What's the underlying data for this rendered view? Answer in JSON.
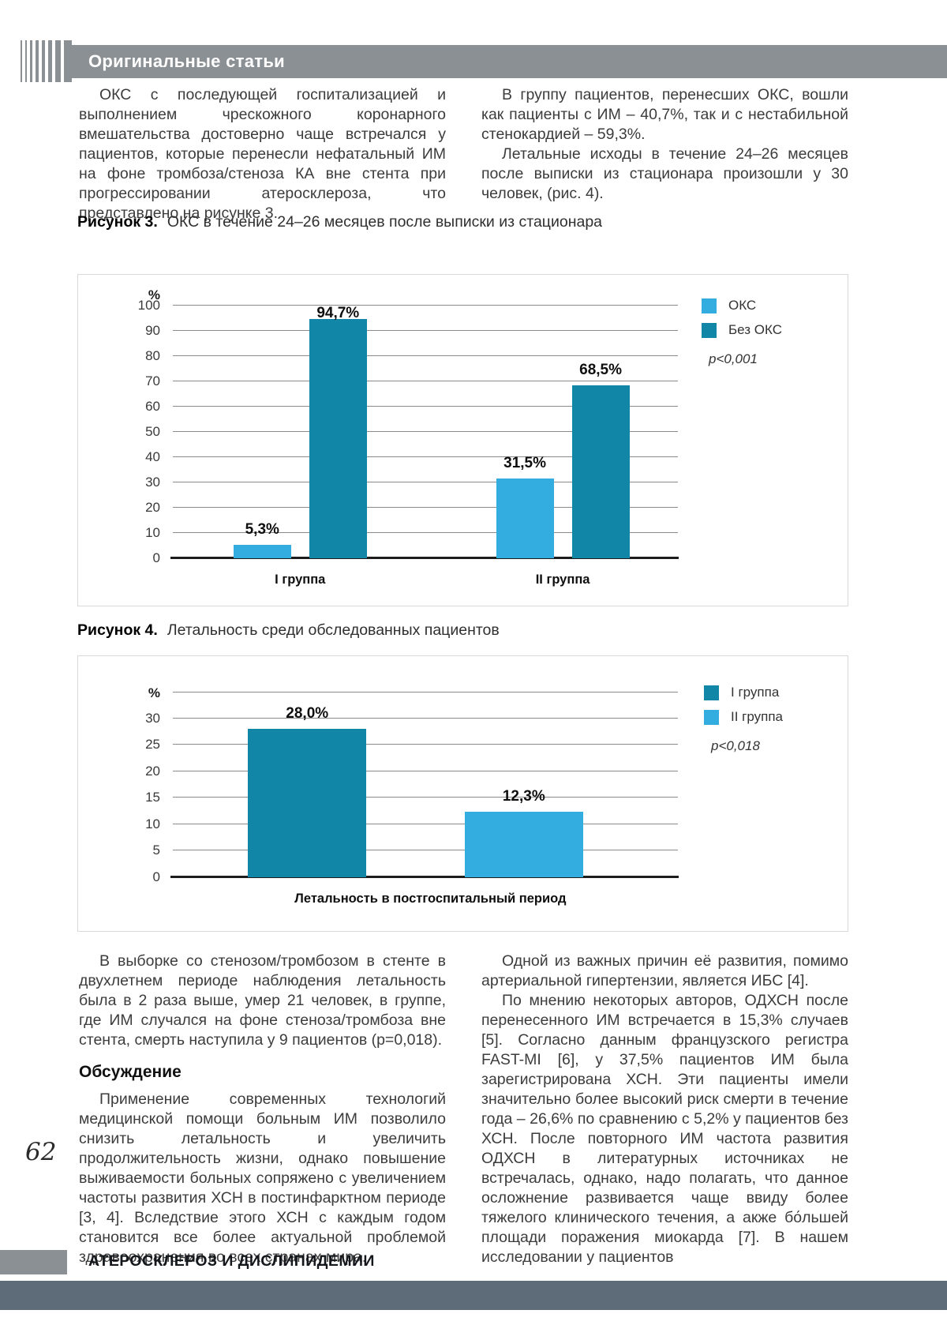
{
  "header": {
    "section_title": "Оригинальные статьи"
  },
  "intro": {
    "left_paragraphs": [
      "ОКС с последующей госпитализацией и выполнением чрескожного коронарного вмешательства достоверно чаще встречался у пациентов, которые перенесли нефатальный ИМ на фоне тромбоза/стеноза КА вне стента при прогрессировании атеросклероза, что представлено на рисунке 3."
    ],
    "right_paragraphs": [
      "В группу пациентов, перенесших ОКС, вошли как пациенты с ИМ – 40,7%, так и с нестабильной стенокардией – 59,3%.",
      "Летальные исходы в течение 24–26 месяцев после выписки из стационара произошли у 30 человек, (рис. 4)."
    ]
  },
  "figures": {
    "fig3": {
      "label": "Рисунок 3.",
      "caption": "ОКС в течение 24–26 месяцев после выписки из стационара"
    },
    "fig4": {
      "label": "Рисунок 4.",
      "caption": "Летальность среди обследованных пациентов"
    }
  },
  "chart_data": [
    {
      "type": "bar",
      "figure": "Рисунок 3",
      "title": "ОКС в течение 24–26 месяцев после выписки из стационара",
      "categories": [
        "I группа",
        "II группа"
      ],
      "series": [
        {
          "name": "ОКС",
          "values": [
            5.3,
            31.5
          ],
          "value_labels": [
            "5,3%",
            "31,5%"
          ],
          "color": "#33ADE0"
        },
        {
          "name": "Без ОКС",
          "values": [
            94.7,
            68.5
          ],
          "value_labels": [
            "94,7%",
            "68,5%"
          ],
          "color": "#1186A6"
        }
      ],
      "ylabel": "%",
      "xlabel": "",
      "ylim": [
        0,
        100
      ],
      "yticks": [
        0,
        10,
        20,
        30,
        40,
        50,
        60,
        70,
        80,
        90,
        100
      ],
      "p_value": "p<0,001",
      "grid": true,
      "legend_position": "top-right"
    },
    {
      "type": "bar",
      "figure": "Рисунок 4",
      "title": "Летальность среди обследованных пациентов",
      "categories": [
        "Летальность в постгоспитальный период"
      ],
      "series": [
        {
          "name": "I группа",
          "values": [
            28.0
          ],
          "value_labels": [
            "28,0%"
          ],
          "color": "#1186A6"
        },
        {
          "name": "II группа",
          "values": [
            12.3
          ],
          "value_labels": [
            "12,3%"
          ],
          "color": "#33ADE0"
        }
      ],
      "ylabel": "%",
      "xlabel": "Летальность в постгоспитальный период",
      "ylim": [
        0,
        35
      ],
      "yticks": [
        0,
        5,
        10,
        15,
        20,
        25,
        30
      ],
      "p_value": "p<0,018",
      "grid": true,
      "legend_position": "top-right"
    }
  ],
  "body": {
    "left_paragraphs": [
      "В выборке со стенозом/тромбозом в стенте в двухлетнем периоде наблюдения летальность была в 2 раза выше, умер 21 человек, в группе, где ИМ случался на фоне стеноза/тромбоза вне стента, смерть наступила у 9 пациентов (p=0,018)."
    ],
    "discussion_heading": "Обсуждение",
    "discussion_paragraphs": [
      "Применение современных технологий медицинской помощи больным ИМ позволило снизить летальность и увеличить продолжительность жизни, однако повышение выживаемости больных сопряжено с увеличением частоты развития ХСН в постинфарктном периоде [3, 4]. Вследствие этого ХСН с каждым годом становится все более актуальной проблемой здравоохранения во всех странах мира."
    ],
    "right_paragraphs": [
      "Одной из важных причин её развития, помимо артериальной гипертензии, является ИБС [4].",
      "По мнению некоторых авторов, ОДХСН после перенесенного ИМ встречается в 15,3% случаев [5]. Согласно данным французского регистра FAST-MI [6], у 37,5% пациентов ИМ была зарегистрирована ХСН. Эти пациенты имели значительно более высокий риск смерти в течение года – 26,6% по сравнению с 5,2% у пациентов без ХСН. После повторного ИМ частота развития ОДХСН в литературных источниках не встречалась, однако, надо полагать, что данное осложнение развивается чаще ввиду более тяжелого клинического течения, а акже бо́льшей площади поражения миокарда [7]. В нашем исследовании у пациентов"
    ]
  },
  "footer": {
    "page_number": "62",
    "journal_title": "АТЕРОСКЛЕРОЗ И ДИСЛИПИДЕМИИ"
  }
}
